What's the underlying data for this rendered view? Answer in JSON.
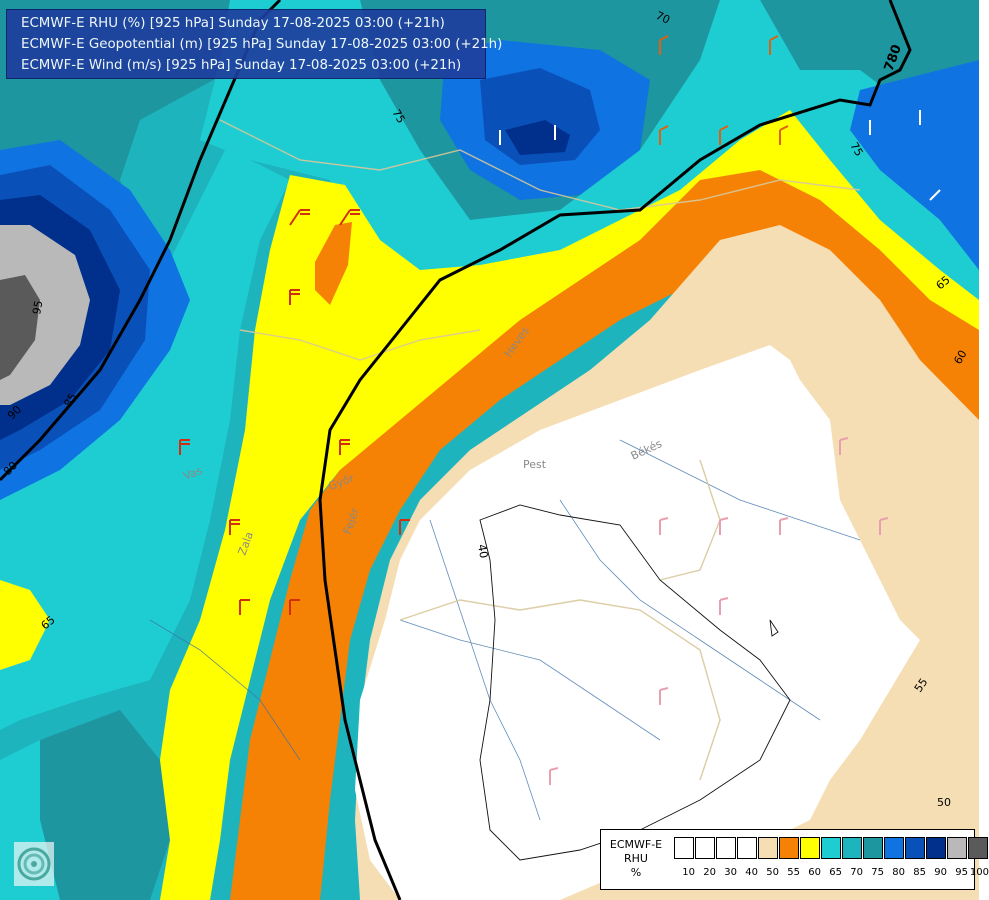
{
  "title_lines": [
    "ECMWF-E RHU (%) [925 hPa] Sunday 17-08-2025 03:00 (+21h)",
    "ECMWF-E Geopotential (m) [925 hPa] Sunday 17-08-2025 03:00 (+21h)",
    "ECMWF-E Wind (m/s) [925 hPa] Sunday 17-08-2025 03:00 (+21h)"
  ],
  "legend": {
    "model": "ECMWF-E",
    "variable": "RHU",
    "unit": "%",
    "swatch_colors": [
      "#ffffff",
      "#ffffff",
      "#ffffff",
      "#ffffff",
      "#ffffff",
      "#f5deb3",
      "#f58205",
      "#ffff00",
      "#1ecdd2",
      "#1eb4be",
      "#1e96a0",
      "#0f73e1",
      "#0a50b9",
      "#002f8c",
      "#b9b9b9",
      "#5a5a5a"
    ],
    "ticks": [
      "10",
      "20",
      "30",
      "40",
      "50",
      "55",
      "60",
      "65",
      "70",
      "75",
      "80",
      "85",
      "90",
      "95",
      "100"
    ]
  },
  "contour_labels": [
    {
      "text": "70",
      "color": "#000"
    },
    {
      "text": "75",
      "color": "#000"
    },
    {
      "text": "75",
      "color": "#000"
    },
    {
      "text": "780",
      "color": "#000"
    },
    {
      "text": "95",
      "color": "#000"
    },
    {
      "text": "90",
      "color": "#000"
    },
    {
      "text": "85",
      "color": "#000"
    },
    {
      "text": "80",
      "color": "#000"
    },
    {
      "text": "65",
      "color": "#000"
    },
    {
      "text": "60",
      "color": "#000"
    },
    {
      "text": "65",
      "color": "#000"
    },
    {
      "text": "55",
      "color": "#000"
    },
    {
      "text": "50",
      "color": "#000"
    },
    {
      "text": "40",
      "color": "#000"
    }
  ],
  "place_labels": [
    "Pest",
    "Békés",
    "Heves",
    "Zala",
    "Vas",
    "Győr",
    "Fejér"
  ],
  "colors": {
    "rhu_50": "#f5deb3",
    "rhu_55": "#f58205",
    "rhu_60": "#ffff00",
    "rhu_65": "#1ecdd2",
    "rhu_70": "#1eb4be",
    "rhu_75": "#1e96a0",
    "rhu_80": "#0f73e1",
    "rhu_85": "#0a50b9",
    "rhu_90": "#002f8c",
    "rhu_95": "#b9b9b9",
    "rhu_100": "#5a5a5a"
  }
}
